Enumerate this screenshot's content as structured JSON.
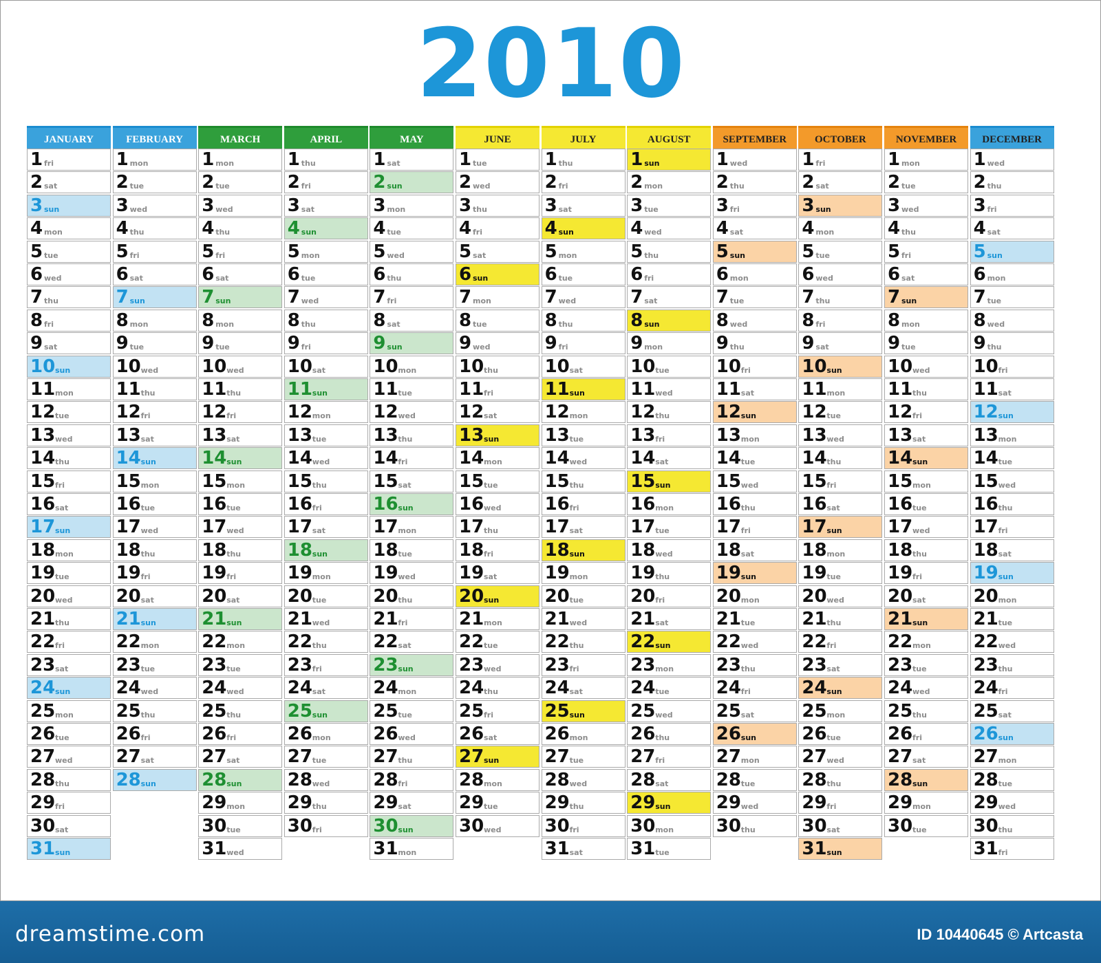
{
  "year": "2010",
  "footer": {
    "site": "dreamstime.com",
    "credit": "ID 10440645 © Artcasta"
  },
  "colors": {
    "year": "#1d96d8",
    "text_dark": "#111111",
    "weekday_gray": "#8c8c8c",
    "cell_border": "#a9a9a9",
    "footer": "#1e6ea8"
  },
  "months": [
    {
      "name": "JANUARY",
      "header_color": "#3aa2dc",
      "header_top": "#1a8cd0",
      "header_text_dark": false,
      "sun_text": "#1d96d8",
      "sun_fill": "#c2e2f3",
      "days": 31,
      "start_weekday": 5
    },
    {
      "name": "FEBRUARY",
      "header_color": "#3aa2dc",
      "header_top": "#1a8cd0",
      "header_text_dark": false,
      "sun_text": "#1d96d8",
      "sun_fill": "#c2e2f3",
      "days": 28,
      "start_weekday": 1
    },
    {
      "name": "MARCH",
      "header_color": "#2f9e3c",
      "header_top": "#1e8a2c",
      "header_text_dark": false,
      "sun_text": "#1e8f31",
      "sun_fill": "#cbe6cc",
      "days": 31,
      "start_weekday": 1
    },
    {
      "name": "APRIL",
      "header_color": "#2f9e3c",
      "header_top": "#1e8a2c",
      "header_text_dark": false,
      "sun_text": "#1e8f31",
      "sun_fill": "#cbe6cc",
      "days": 30,
      "start_weekday": 4
    },
    {
      "name": "MAY",
      "header_color": "#2f9e3c",
      "header_top": "#1e8a2c",
      "header_text_dark": false,
      "sun_text": "#1e8f31",
      "sun_fill": "#cbe6cc",
      "days": 31,
      "start_weekday": 6
    },
    {
      "name": "JUNE",
      "header_color": "#f5e832",
      "header_top": "#e3d200",
      "header_text_dark": true,
      "sun_text": "#111111",
      "sun_fill": "#f5e832",
      "days": 30,
      "start_weekday": 2
    },
    {
      "name": "JULY",
      "header_color": "#f5e832",
      "header_top": "#e3d200",
      "header_text_dark": true,
      "sun_text": "#111111",
      "sun_fill": "#f5e832",
      "days": 31,
      "start_weekday": 4
    },
    {
      "name": "AUGUST",
      "header_color": "#f5e832",
      "header_top": "#e3d200",
      "header_text_dark": true,
      "sun_text": "#111111",
      "sun_fill": "#f5e832",
      "days": 31,
      "start_weekday": 0
    },
    {
      "name": "SEPTEMBER",
      "header_color": "#f39a2a",
      "header_top": "#e5830e",
      "header_text_dark": true,
      "sun_text": "#111111",
      "sun_fill": "#fbd3a6",
      "days": 30,
      "start_weekday": 3
    },
    {
      "name": "OCTOBER",
      "header_color": "#f39a2a",
      "header_top": "#e5830e",
      "header_text_dark": true,
      "sun_text": "#111111",
      "sun_fill": "#fbd3a6",
      "days": 31,
      "start_weekday": 5
    },
    {
      "name": "NOVEMBER",
      "header_color": "#f39a2a",
      "header_top": "#e5830e",
      "header_text_dark": true,
      "sun_text": "#111111",
      "sun_fill": "#fbd3a6",
      "days": 30,
      "start_weekday": 1
    },
    {
      "name": "DECEMBER",
      "header_color": "#3aa2dc",
      "header_top": "#1a8cd0",
      "header_text_dark": true,
      "sun_text": "#1d96d8",
      "sun_fill": "#c2e2f3",
      "days": 31,
      "start_weekday": 3
    }
  ],
  "weekday_labels": [
    "sun",
    "mon",
    "tue",
    "wed",
    "thu",
    "fri",
    "sat"
  ]
}
